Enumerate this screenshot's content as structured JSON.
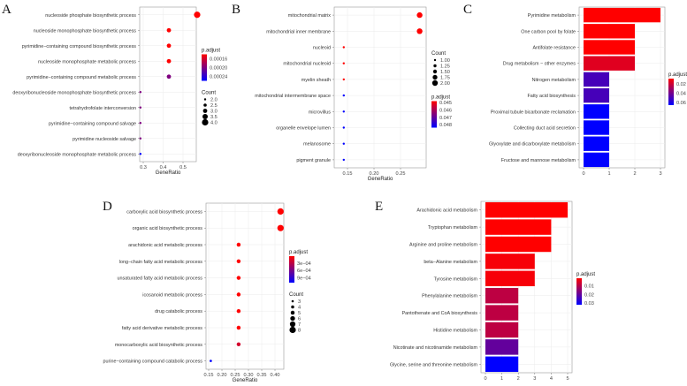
{
  "chart_data": [
    {
      "panel": "A",
      "type": "scatter",
      "xlabel": "GeneRatio",
      "x_ticks": [
        0.3,
        0.4,
        0.5
      ],
      "x_tick_labels": [
        "0.3",
        "0.4",
        "0.5"
      ],
      "categories": [
        "nucleoside phosphate biosynthetic process",
        "nucleoside monophosphate biosynthetic process",
        "pyrimidine−containing compound biosynthetic process",
        "nucleoside monophosphate metabolic process",
        "pyrimidine−containing compound metabolic process",
        "deoxyribonucleoside monophosphate biosynthetic process",
        "tetrahydrofolate interconversion",
        "pyrimidine−containing compound salvage",
        "pyrimidine nucleoside salvage",
        "deoxyribonucleoside monophosphate metabolic process"
      ],
      "gene_ratio": [
        0.571,
        0.429,
        0.429,
        0.429,
        0.429,
        0.286,
        0.286,
        0.286,
        0.286,
        0.286
      ],
      "count": [
        4,
        3,
        3,
        3,
        3,
        2,
        2,
        2,
        2,
        2
      ],
      "p_adjust": [
        0.00014,
        0.00014,
        0.00014,
        0.00014,
        0.0002,
        0.0002,
        0.0002,
        0.0002,
        0.0002,
        0.00026
      ],
      "color_legend": {
        "title": "p.adjust",
        "range": [
          0.00014,
          0.00026
        ],
        "ticks": [
          0.00016,
          0.0002,
          0.00024
        ],
        "labels": [
          "0.00016",
          "0.00020",
          "0.00024"
        ]
      },
      "size_legend": {
        "title": "Count",
        "values": [
          2,
          2.5,
          3,
          3.5,
          4
        ],
        "labels": [
          "2.0",
          "2.5",
          "3.0",
          "3.5",
          "4.0"
        ]
      },
      "legend_order": [
        "color",
        "size"
      ]
    },
    {
      "panel": "B",
      "type": "scatter",
      "xlabel": "GeneRatio",
      "x_ticks": [
        0.15,
        0.2,
        0.25
      ],
      "x_tick_labels": [
        "0.15",
        "0.20",
        "0.25"
      ],
      "categories": [
        "mitochondrial matrix",
        "mitochondrial inner membrane",
        "nucleoid",
        "mitochondrial nucleoid",
        "myelin sheath",
        "mitochondrial intermembrane space",
        "microvillus",
        "organelle envelope lumen",
        "melanosome",
        "pigment granule"
      ],
      "gene_ratio": [
        0.286,
        0.286,
        0.143,
        0.143,
        0.143,
        0.143,
        0.143,
        0.143,
        0.143,
        0.143
      ],
      "count": [
        2,
        2,
        1,
        1,
        1,
        1,
        1,
        1,
        1,
        1
      ],
      "p_adjust": [
        0.0448,
        0.0448,
        0.0448,
        0.0448,
        0.0448,
        0.0484,
        0.0484,
        0.0484,
        0.0484,
        0.0484
      ],
      "color_legend": {
        "title": "p.adjust",
        "range": [
          0.0448,
          0.0484
        ],
        "ticks": [
          0.045,
          0.046,
          0.047,
          0.048
        ],
        "labels": [
          "0.045",
          "0.046",
          "0.047",
          "0.048"
        ]
      },
      "size_legend": {
        "title": "Count",
        "values": [
          1,
          1.25,
          1.5,
          1.75,
          2
        ],
        "labels": [
          "1.00",
          "1.25",
          "1.50",
          "1.75",
          "2.00"
        ]
      },
      "legend_order": [
        "size",
        "color"
      ]
    },
    {
      "panel": "C",
      "type": "bar",
      "x_ticks": [
        0,
        1,
        2,
        3
      ],
      "x_tick_labels": [
        "0",
        "1",
        "2",
        "3"
      ],
      "categories": [
        "Pyrimidine metabolism",
        "One carbon pool by folate",
        "Antifolate resistance",
        "Drug metabolism − other enzymes",
        "Nitrogen metabolism",
        "Fatty acid biosynthesis",
        "Proximal tubule bicarbonate reclamation",
        "Collecting duct acid secretion",
        "Glyoxylate and dicarboxylate metabolism",
        "Fructose and mannose metabolism"
      ],
      "values": [
        3,
        2,
        2,
        2,
        1,
        1,
        1,
        1,
        1,
        1
      ],
      "p_adjust": [
        0.008,
        0.008,
        0.008,
        0.015,
        0.05,
        0.05,
        0.066,
        0.066,
        0.066,
        0.066
      ],
      "color_legend": {
        "title": "p.adjust",
        "range": [
          0.008,
          0.066
        ],
        "ticks": [
          0.02,
          0.04,
          0.06
        ],
        "labels": [
          "0.02",
          "0.04",
          "0.06"
        ]
      }
    },
    {
      "panel": "D",
      "type": "scatter",
      "xlabel": "GeneRatio",
      "x_ticks": [
        0.15,
        0.2,
        0.25,
        0.3,
        0.35,
        0.4
      ],
      "x_tick_labels": [
        "0.15",
        "0.20",
        "0.25",
        "0.30",
        "0.35",
        "0.40"
      ],
      "categories": [
        "carboxylic acid biosynthetic process",
        "organic acid biosynthetic process",
        "arachidonic acid metabolic process",
        "long−chain fatty acid metabolic process",
        "unsaturated fatty acid metabolic process",
        "icosanoid metabolic process",
        "drug catabolic process",
        "fatty acid derivative metabolic process",
        "monocarboxylic acid biosynthetic process",
        "purine−containing compound catabolic process"
      ],
      "gene_ratio": [
        0.421,
        0.421,
        0.263,
        0.263,
        0.263,
        0.263,
        0.263,
        0.263,
        0.263,
        0.158
      ],
      "count": [
        8,
        8,
        5,
        5,
        5,
        5,
        5,
        5,
        5,
        3
      ],
      "p_adjust": [
        1e-05,
        1e-05,
        1e-05,
        1e-05,
        1e-05,
        1e-05,
        1e-05,
        1e-05,
        0.0002,
        0.0011
      ],
      "color_legend": {
        "title": "p.adjust",
        "range": [
          1e-05,
          0.0011
        ],
        "ticks": [
          0.0003,
          0.0006,
          0.0009
        ],
        "labels": [
          "3e−04",
          "6e−04",
          "9e−04"
        ]
      },
      "size_legend": {
        "title": "Count",
        "values": [
          3,
          4,
          5,
          6,
          7,
          8
        ],
        "labels": [
          "3",
          "4",
          "5",
          "6",
          "7",
          "8"
        ]
      },
      "legend_order": [
        "color",
        "size"
      ]
    },
    {
      "panel": "E",
      "type": "bar",
      "x_ticks": [
        0,
        1,
        2,
        3,
        4,
        5
      ],
      "x_tick_labels": [
        "0",
        "1",
        "2",
        "3",
        "4",
        "5"
      ],
      "categories": [
        "Arachidonic acid metabolism",
        "Tryptophan metabolism",
        "Arginine and proline metabolism",
        "beta−Alanine metabolism",
        "Tyrosine metabolism",
        "Phenylalanine metabolism",
        "Pantothenate and CoA biosynthesis",
        "Histidine metabolism",
        "Nicotinate and nicotinamide metabolism",
        "Glycine, serine and threonine metabolism"
      ],
      "values": [
        5,
        4,
        4,
        3,
        3,
        2,
        2,
        2,
        2,
        2
      ],
      "p_adjust": [
        0.001,
        0.001,
        0.001,
        0.002,
        0.002,
        0.009,
        0.009,
        0.009,
        0.02,
        0.032
      ],
      "color_legend": {
        "title": "p.adjust",
        "range": [
          0.001,
          0.032
        ],
        "ticks": [
          0.01,
          0.02,
          0.03
        ],
        "labels": [
          "0.01",
          "0.02",
          "0.03"
        ]
      }
    }
  ]
}
